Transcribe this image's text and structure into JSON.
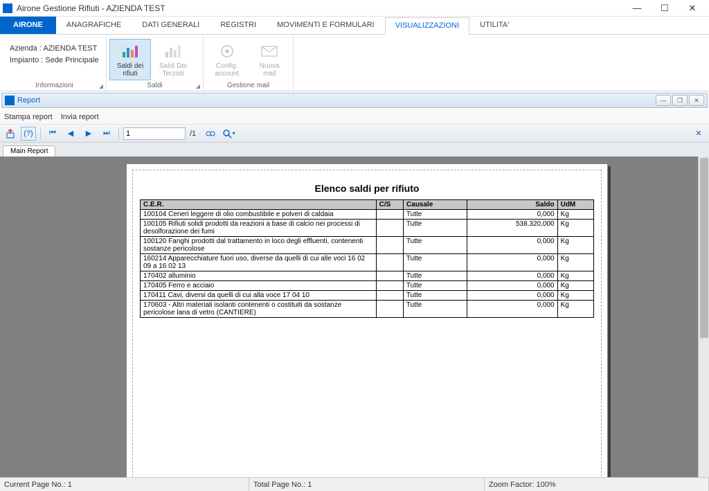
{
  "window": {
    "title": "Airone Gestione Rifiuti - AZIENDA TEST"
  },
  "ribbon": {
    "app_tab": "AIRONE",
    "tabs": [
      "ANAGRAFICHE",
      "DATI GENERALI",
      "REGISTRI",
      "MOVIMENTI E FORMULARI",
      "VISUALIZZAZIONI",
      "UTILITA'"
    ],
    "active_tab_index": 4,
    "info": {
      "azienda": "Azienda : AZIENDA TEST",
      "impianto": "Impianto : Sede Principale",
      "group": "Informazioni"
    },
    "saldi_group": "Saldi",
    "saldi_rifiuti": "Saldi dei\nrifiuti",
    "saldi_terzisti": "Saldi Dei\nTerzisti",
    "mail_group": "Gestione mail",
    "config_account": "Config.\naccount",
    "nuova_mail": "Nuova\nmail"
  },
  "sub": {
    "title": "Report"
  },
  "menu": {
    "stampa": "Stampa report",
    "invia": "Invia report"
  },
  "toolbar": {
    "page_value": "1",
    "page_total": "/1"
  },
  "doc_tab": "Main Report",
  "report": {
    "title": "Elenco saldi per rifiuto",
    "headers": {
      "cer": "C.E.R.",
      "cs": "C/S",
      "causale": "Causale",
      "saldo": "Saldo",
      "udm": "UdM"
    },
    "rows": [
      {
        "cer": "100104 Ceneri leggere di olio combustibile e polveri di caldaia",
        "cs": "",
        "causale": "Tutte",
        "saldo": "0,000",
        "udm": "Kg"
      },
      {
        "cer": "100105 Rifiuti solidi prodotti da reazioni a base di calcio nei processi di desolforazione dei fumi",
        "cs": "",
        "causale": "Tutte",
        "saldo": "538.320,000",
        "udm": "Kg"
      },
      {
        "cer": "100120 Fanghi prodotti dal trattamento in loco degli effluenti, contenenti sostanze pericolose",
        "cs": "",
        "causale": "Tutte",
        "saldo": "0,000",
        "udm": "Kg"
      },
      {
        "cer": "160214 Apparecchiature fuori uso, diverse da quelli di cui alle voci 16 02 09 a 16 02 13",
        "cs": "",
        "causale": "Tutte",
        "saldo": "0,000",
        "udm": "Kg"
      },
      {
        "cer": "170402 alluminio",
        "cs": "",
        "causale": "Tutte",
        "saldo": "0,000",
        "udm": "Kg"
      },
      {
        "cer": "170405 Ferro e acciaio",
        "cs": "",
        "causale": "Tutte",
        "saldo": "0,000",
        "udm": "Kg"
      },
      {
        "cer": "170411 Cavi, diversi da quelli di cui alla voce 17 04 10",
        "cs": "",
        "causale": "Tutte",
        "saldo": "0,000",
        "udm": "Kg"
      },
      {
        "cer": "170603 - Altri materiali isolanti contenenti o costituiti da sostanze pericolose lana di vetro (CANTIERE)",
        "cs": "",
        "causale": "Tutte",
        "saldo": "0,000",
        "udm": "Kg"
      }
    ]
  },
  "status": {
    "current": "Current Page No.: 1",
    "total": "Total Page No.: 1",
    "zoom": "Zoom Factor: 100%"
  },
  "colors": {
    "accent": "#0066cc",
    "header_bg": "#c8c8c8",
    "viewer_bg": "#808080"
  }
}
